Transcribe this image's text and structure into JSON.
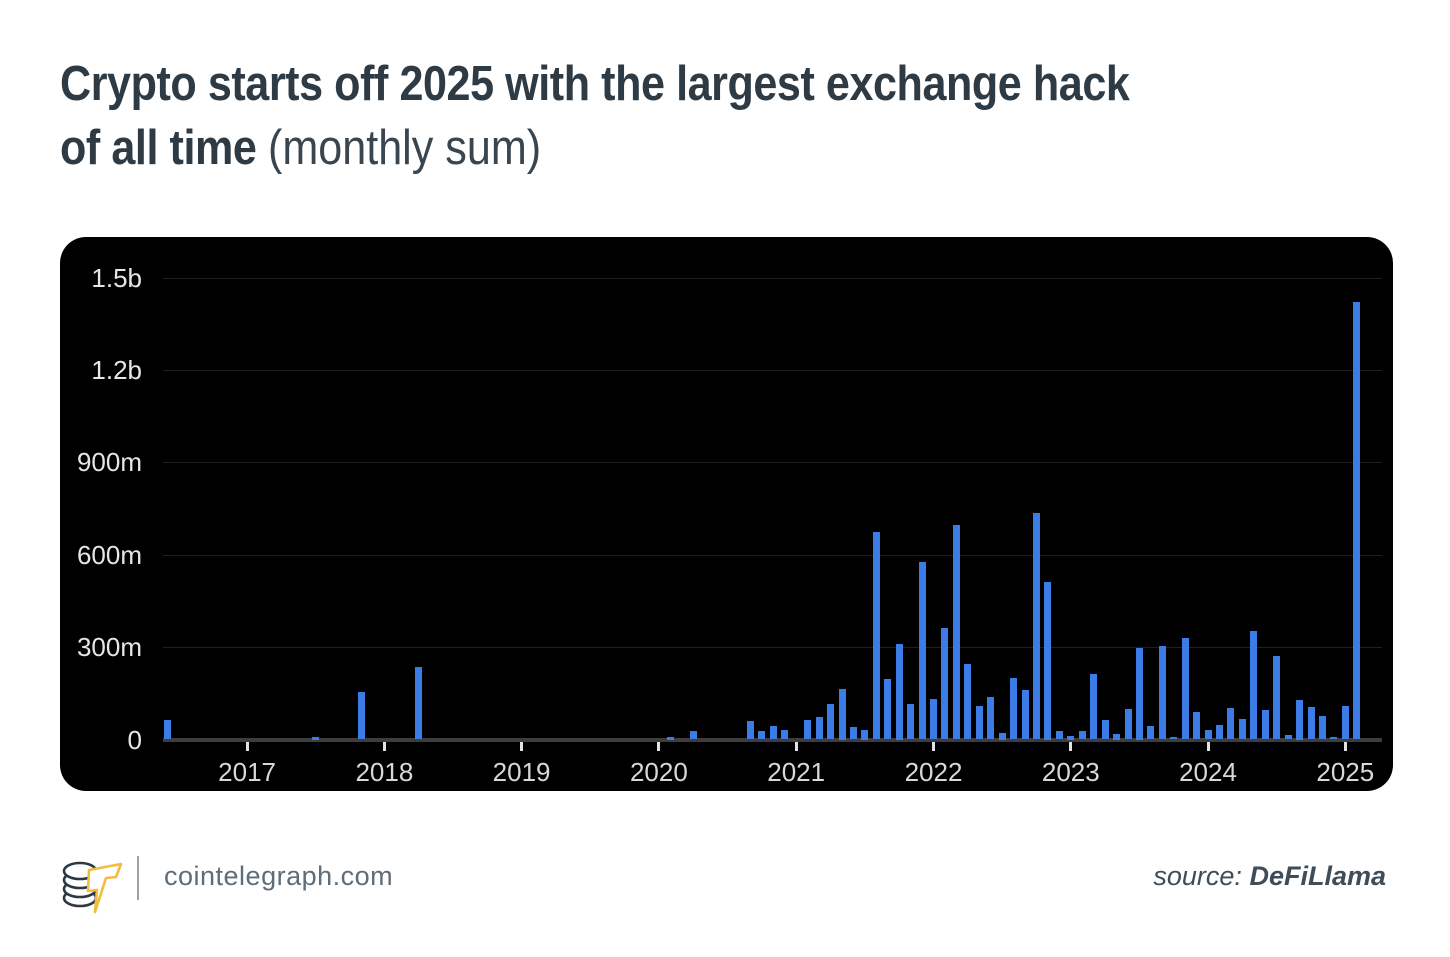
{
  "title": {
    "line1": "Crypto starts off 2025 with the largest exchange hack",
    "line2_bold": "of all time",
    "line2_light": "(monthly sum)"
  },
  "footer": {
    "brand": "cointelegraph.com",
    "source_label": "source:",
    "source_value": "DeFiLlama",
    "logo_icon": "cointelegraph-coin-stack-with-lightning-t",
    "logo_coin_outline_color": "#2c3944",
    "logo_bolt_color": "#f2bc3d",
    "divider_color": "#9aa1a8"
  },
  "chart_data": {
    "type": "bar",
    "title": "Crypto starts off 2025 with the largest exchange hack of all time (monthly sum)",
    "xlabel": "",
    "ylabel": "",
    "unit": "USD (m = millions, b = billions)",
    "ylim_millions": [
      0,
      1500
    ],
    "grid": "horizontal",
    "legend": "none",
    "panel_bg": "#000000",
    "bar_color": "#3c7ce6",
    "grid_color": "#1f1f1f",
    "axis_color": "#3d3d3d",
    "y_ticks": [
      {
        "value": 0,
        "label": "0"
      },
      {
        "value": 300,
        "label": "300m"
      },
      {
        "value": 600,
        "label": "600m"
      },
      {
        "value": 900,
        "label": "900m"
      },
      {
        "value": 1200,
        "label": "1.2b"
      },
      {
        "value": 1500,
        "label": "1.5b"
      }
    ],
    "x_ticks": [
      "2017",
      "2018",
      "2019",
      "2020",
      "2021",
      "2022",
      "2023",
      "2024",
      "2025"
    ],
    "start_month": "2016-06",
    "end_month": "2025-02",
    "monthly": [
      {
        "month": "2016-06",
        "value_musd": 62
      },
      {
        "month": "2017-07",
        "value_musd": 8
      },
      {
        "month": "2017-11",
        "value_musd": 153
      },
      {
        "month": "2018-04",
        "value_musd": 236
      },
      {
        "month": "2020-02",
        "value_musd": 8
      },
      {
        "month": "2020-04",
        "value_musd": 28
      },
      {
        "month": "2020-09",
        "value_musd": 61
      },
      {
        "month": "2020-10",
        "value_musd": 28
      },
      {
        "month": "2020-11",
        "value_musd": 45
      },
      {
        "month": "2020-12",
        "value_musd": 30
      },
      {
        "month": "2021-02",
        "value_musd": 64
      },
      {
        "month": "2021-03",
        "value_musd": 74
      },
      {
        "month": "2021-04",
        "value_musd": 115
      },
      {
        "month": "2021-05",
        "value_musd": 164
      },
      {
        "month": "2021-06",
        "value_musd": 41
      },
      {
        "month": "2021-07",
        "value_musd": 31
      },
      {
        "month": "2021-08",
        "value_musd": 675
      },
      {
        "month": "2021-09",
        "value_musd": 195
      },
      {
        "month": "2021-10",
        "value_musd": 310
      },
      {
        "month": "2021-11",
        "value_musd": 116
      },
      {
        "month": "2021-12",
        "value_musd": 576
      },
      {
        "month": "2022-01",
        "value_musd": 132
      },
      {
        "month": "2022-02",
        "value_musd": 361
      },
      {
        "month": "2022-03",
        "value_musd": 695
      },
      {
        "month": "2022-04",
        "value_musd": 246
      },
      {
        "month": "2022-05",
        "value_musd": 108
      },
      {
        "month": "2022-06",
        "value_musd": 137
      },
      {
        "month": "2022-07",
        "value_musd": 21
      },
      {
        "month": "2022-08",
        "value_musd": 199
      },
      {
        "month": "2022-09",
        "value_musd": 161
      },
      {
        "month": "2022-10",
        "value_musd": 735
      },
      {
        "month": "2022-11",
        "value_musd": 513
      },
      {
        "month": "2022-12",
        "value_musd": 29
      },
      {
        "month": "2023-01",
        "value_musd": 13
      },
      {
        "month": "2023-02",
        "value_musd": 27
      },
      {
        "month": "2023-03",
        "value_musd": 214
      },
      {
        "month": "2023-04",
        "value_musd": 64
      },
      {
        "month": "2023-05",
        "value_musd": 18
      },
      {
        "month": "2023-06",
        "value_musd": 100
      },
      {
        "month": "2023-07",
        "value_musd": 297
      },
      {
        "month": "2023-08",
        "value_musd": 45
      },
      {
        "month": "2023-09",
        "value_musd": 305
      },
      {
        "month": "2023-10",
        "value_musd": 9
      },
      {
        "month": "2023-11",
        "value_musd": 330
      },
      {
        "month": "2023-12",
        "value_musd": 89
      },
      {
        "month": "2024-01",
        "value_musd": 32
      },
      {
        "month": "2024-02",
        "value_musd": 48
      },
      {
        "month": "2024-03",
        "value_musd": 102
      },
      {
        "month": "2024-04",
        "value_musd": 66
      },
      {
        "month": "2024-05",
        "value_musd": 353
      },
      {
        "month": "2024-06",
        "value_musd": 96
      },
      {
        "month": "2024-07",
        "value_musd": 272
      },
      {
        "month": "2024-08",
        "value_musd": 16
      },
      {
        "month": "2024-09",
        "value_musd": 130
      },
      {
        "month": "2024-10",
        "value_musd": 105
      },
      {
        "month": "2024-11",
        "value_musd": 75
      },
      {
        "month": "2024-12",
        "value_musd": 9
      },
      {
        "month": "2025-01",
        "value_musd": 110
      },
      {
        "month": "2025-02",
        "value_musd": 1420
      }
    ]
  }
}
